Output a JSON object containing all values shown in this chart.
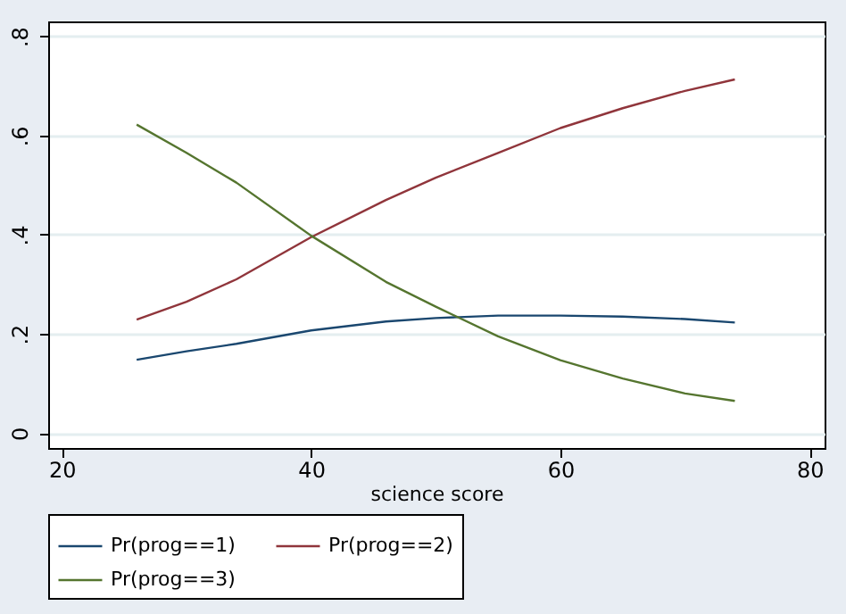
{
  "chart_data": {
    "type": "line",
    "xlabel": "science score",
    "x": [
      26,
      30,
      34,
      40,
      46,
      50,
      55,
      60,
      65,
      70,
      74
    ],
    "series": [
      {
        "name": "Pr(prog==1)",
        "color": "#1a476f",
        "values": [
          0.148,
          0.165,
          0.18,
          0.207,
          0.225,
          0.232,
          0.237,
          0.237,
          0.235,
          0.23,
          0.223
        ]
      },
      {
        "name": "Pr(prog==2)",
        "color": "#90353b",
        "values": [
          0.229,
          0.265,
          0.31,
          0.395,
          0.47,
          0.515,
          0.565,
          0.615,
          0.655,
          0.69,
          0.713
        ]
      },
      {
        "name": "Pr(prog==3)",
        "color": "#55752f",
        "values": [
          0.622,
          0.565,
          0.505,
          0.398,
          0.305,
          0.255,
          0.195,
          0.147,
          0.11,
          0.08,
          0.065
        ]
      }
    ],
    "xlim": [
      18.9,
      81.2
    ],
    "xticks": [
      20,
      40,
      60,
      80
    ],
    "ylim": [
      -0.03,
      0.83
    ],
    "yticks": [
      0,
      {
        "value": 0.2,
        "label": ".2"
      },
      {
        "value": 0.4,
        "label": ".4"
      },
      {
        "value": 0.6,
        "label": ".6"
      },
      {
        "value": 0.8,
        "label": ".8"
      }
    ],
    "grid": "y",
    "legend": "bottom",
    "marker": "none",
    "line_style": "solid"
  }
}
